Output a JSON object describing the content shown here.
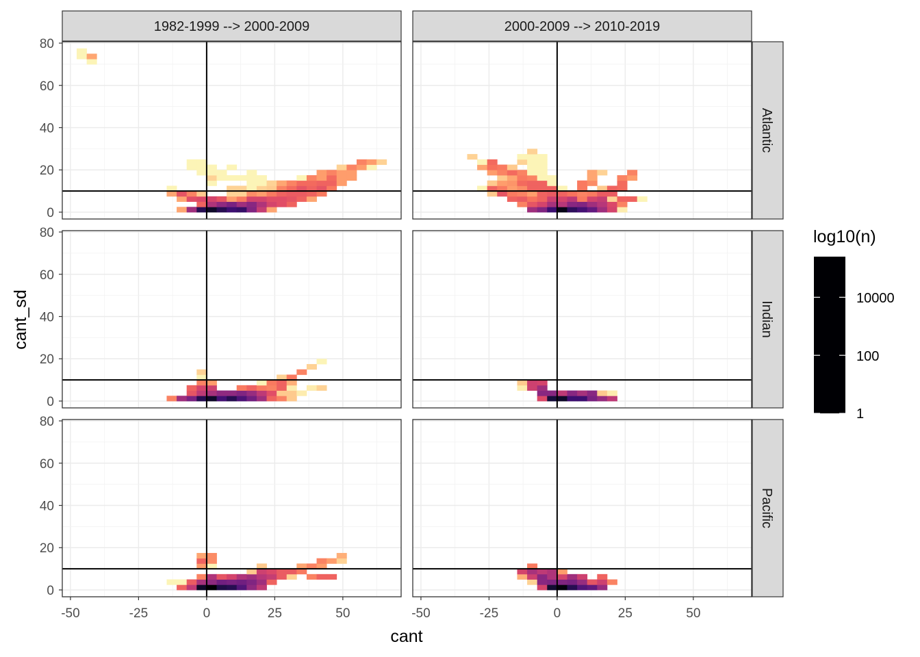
{
  "chart_data": {
    "type": "heatmap",
    "xlabel": "cant",
    "ylabel": "cant_sd",
    "xlim": [
      -53,
      71.4
    ],
    "ylim": [
      -3.24,
      80.65
    ],
    "x_ticks": [
      "-50",
      "-25",
      "0",
      "25",
      "50"
    ],
    "x_tick_values": [
      -50,
      -25,
      0,
      25,
      50
    ],
    "y_ticks": [
      "0",
      "20",
      "40",
      "60",
      "80"
    ],
    "y_tick_values": [
      0,
      20,
      40,
      60,
      80
    ],
    "grid": true,
    "reference_lines": {
      "cant": 0,
      "cant_sd": 10
    },
    "binwidth": {
      "cant": 3.67,
      "cant_sd": 2.5
    },
    "facet_columns": [
      "1982-1999 --> 2000-2009",
      "2000-2009 --> 2010-2019"
    ],
    "facet_rows": [
      "Atlantic",
      "Indian",
      "Pacific"
    ],
    "legend": {
      "title": "log10(n)",
      "position": "right",
      "labels": [
        "10000",
        "100",
        "1"
      ],
      "label_log_values": [
        4,
        2,
        0
      ],
      "range_log10": [
        0,
        5.4
      ],
      "palette": "magma (reversed)",
      "colors": [
        "#000004",
        "#140e36",
        "#3b0f70",
        "#641a80",
        "#8c2981",
        "#b73779",
        "#de4968",
        "#f7705c",
        "#fe9f6d",
        "#fecf92",
        "#fcfdbf"
      ]
    },
    "panels": [
      {
        "column": 0,
        "row": 0,
        "tiles": [
          {
            "cant_sd": 0,
            "cant_from": -11.01,
            "log10_n": [
              1.0,
              3.0,
              4.6,
              5.0,
              4.6,
              4.3,
              4.4,
              3.4,
              2.5,
              1.0
            ]
          },
          {
            "cant_sd": 2.5,
            "cant_from": -3.67,
            "log10_n": [
              1.8,
              2.8,
              3.2,
              3.5,
              3.0,
              3.3,
              2.8,
              2.3,
              2.1,
              1.8
            ]
          },
          {
            "cant_sd": 5,
            "cant_from": -11.01,
            "log10_n": [
              1.0,
              2.1,
              2.2,
              2.3,
              2.0,
              1.1,
              1.5,
              2.3,
              2.3,
              2.1,
              2.1,
              2.0,
              1.8,
              1.0
            ]
          },
          {
            "cant_sd": 7.5,
            "cant_from": -14.68,
            "log10_n": [
              1.0,
              2.0,
              1.4,
              0.6,
              null,
              null,
              0.5,
              0.5,
              1.3,
              1.1,
              1.5,
              1.8,
              1.9,
              1.9,
              1.8,
              1.5
            ]
          },
          {
            "cant_sd": 10,
            "cant_from": -14.68,
            "log10_n": [
              0.1,
              null,
              null,
              null,
              null,
              null,
              0.5,
              0.5,
              0.1,
              0.5,
              0.6,
              1.4,
              1.7,
              2.0,
              1.8,
              2.0,
              1.5
            ]
          },
          {
            "cant_sd": 12.5,
            "cant_from": 0,
            "log10_n": [
              0.1,
              null,
              null,
              null,
              0.1,
              0.1,
              0.5,
              1.0,
              1.4,
              1.7,
              1.7,
              1.8,
              1.8,
              1.1
            ]
          },
          {
            "cant_sd": 15,
            "cant_from": 0,
            "log10_n": [
              0.5,
              0.1,
              0.1,
              0.1,
              0.1,
              0.1,
              null,
              null,
              null,
              0.1,
              1.4,
              1.1,
              1.7,
              1.1,
              1.1
            ]
          },
          {
            "cant_sd": 17.5,
            "cant_from": -3.67,
            "log10_n": [
              0.1,
              0.1,
              0.1,
              null,
              null,
              0.1,
              null,
              null,
              null,
              null,
              null,
              null,
              1.1,
              1.4,
              1.1,
              1.1
            ]
          },
          {
            "cant_sd": 20,
            "cant_from": -7.34,
            "log10_n": [
              0.1,
              0.1,
              0.1,
              null,
              0.1,
              null,
              null,
              null,
              null,
              null,
              null,
              null,
              null,
              null,
              null,
              0.5,
              1.4,
              1.1,
              0.1
            ]
          },
          {
            "cant_sd": 22.5,
            "cant_from": -7.34,
            "log10_n": [
              0.1,
              0.1,
              null,
              null,
              null,
              null,
              null,
              null,
              null,
              null,
              null,
              null,
              null,
              null,
              null,
              null,
              null,
              1.4,
              1.1,
              0.5
            ]
          },
          {
            "cant_sd": 70,
            "cant_from": -44.04,
            "log10_n": [
              0.1
            ]
          },
          {
            "cant_sd": 72.5,
            "cant_from": -47.71,
            "log10_n": [
              0.1,
              1.0
            ]
          },
          {
            "cant_sd": 75,
            "cant_from": -47.71,
            "log10_n": [
              0.1
            ]
          }
        ]
      },
      {
        "column": 1,
        "row": 0,
        "tiles": [
          {
            "cant_sd": 0,
            "cant_from": -11.01,
            "log10_n": [
              3.0,
              3.4,
              4.3,
              5.2,
              4.5,
              4.2,
              3.8,
              3.0,
              2.3,
              0.2
            ]
          },
          {
            "cant_sd": 2.5,
            "cant_from": -14.68,
            "log10_n": [
              1.4,
              2.0,
              2.3,
              2.9,
              2.7,
              3.3,
              3.4,
              3.0,
              2.7,
              2.2,
              1.4
            ]
          },
          {
            "cant_sd": 5,
            "cant_from": -18.35,
            "log10_n": [
              1.8,
              1.9,
              1.6,
              1.8,
              2.4,
              2.3,
              2.6,
              1.5,
              2.3,
              2.5,
              0.5,
              1.8,
              1.8,
              0.1
            ]
          },
          {
            "cant_sd": 7.5,
            "cant_from": -25.69,
            "log10_n": [
              0.6,
              2.0,
              1.5,
              1.4,
              1.1,
              1.8,
              1.9,
              1.8,
              1.6,
              1.4,
              1.5,
              1.9,
              1.9
            ]
          },
          {
            "cant_sd": 10,
            "cant_from": -29.36,
            "log10_n": [
              0.1,
              1.8,
              1.5,
              1.1,
              1.3,
              1.8,
              1.8,
              1.8,
              0.1,
              null,
              1.5,
              null,
              0.6,
              1.8,
              1.7
            ]
          },
          {
            "cant_sd": 12.5,
            "cant_from": -25.69,
            "log10_n": [
              0.6,
              1.1,
              1.2,
              1.7,
              1.8,
              1.8,
              0.1,
              null,
              null,
              1.5,
              1.3,
              null,
              null,
              1.7
            ]
          },
          {
            "cant_sd": 15,
            "cant_from": -22.02,
            "log10_n": [
              0.6,
              1.0,
              1.5,
              1.4,
              0.1,
              0.1,
              null,
              null,
              null,
              1.0,
              null,
              null,
              1.4,
              1.1
            ]
          },
          {
            "cant_sd": 17.5,
            "cant_from": -25.69,
            "log10_n": [
              1.1,
              1.4,
              1.7,
              1.4,
              0.1,
              0.1,
              null,
              null,
              null,
              null,
              1.0,
              0.5,
              null,
              null,
              1.4
            ]
          },
          {
            "cant_sd": 20,
            "cant_from": -29.36,
            "log10_n": [
              1.0,
              1.6,
              1.5,
              0.6,
              null,
              0.1,
              0.1
            ]
          },
          {
            "cant_sd": 22.5,
            "cant_from": -29.36,
            "log10_n": [
              0.1,
              1.7,
              null,
              null,
              0.5,
              0.1,
              0.1
            ]
          },
          {
            "cant_sd": 25,
            "cant_from": -33.03,
            "log10_n": [
              0.5,
              null,
              null,
              null,
              null,
              0.1,
              0.1,
              0.1
            ]
          },
          {
            "cant_sd": 27.5,
            "cant_from": -11.01,
            "log10_n": [
              0.5
            ]
          }
        ]
      },
      {
        "column": 0,
        "row": 1,
        "tiles": [
          {
            "cant_sd": 0,
            "cant_from": -14.68,
            "log10_n": [
              1.4,
              3.0,
              3.5,
              4.6,
              5.0,
              4.2,
              4.6,
              4.1,
              3.6,
              3.0,
              1.8,
              1.4,
              0.6
            ]
          },
          {
            "cant_sd": 2.5,
            "cant_from": -7.34,
            "log10_n": [
              2.0,
              2.6,
              2.9,
              3.2,
              3.2,
              3.4,
              3.1,
              2.6,
              2.1,
              0.6,
              0.6,
              0.2
            ]
          },
          {
            "cant_sd": 5,
            "cant_from": -7.34,
            "log10_n": [
              1.8,
              2.3,
              2.4,
              null,
              null,
              1.5,
              1.8,
              1.5,
              1.4,
              1.8,
              0.2,
              null,
              0.2,
              0.5
            ]
          },
          {
            "cant_sd": 7.5,
            "cant_from": -3.67,
            "log10_n": [
              1.4,
              1.1,
              null,
              null,
              null,
              null,
              0.1,
              1.5,
              1.8,
              0.9
            ]
          },
          {
            "cant_sd": 10,
            "cant_from": -3.67,
            "log10_n": [
              0.1,
              null,
              null,
              null,
              null,
              null,
              null,
              null,
              0.5,
              1.5
            ]
          },
          {
            "cant_sd": 12.5,
            "cant_from": -3.67,
            "log10_n": [
              0.5,
              null,
              null,
              null,
              null,
              null,
              null,
              null,
              null,
              null,
              1.4
            ]
          },
          {
            "cant_sd": 15,
            "cant_from": 36.7,
            "log10_n": [
              0.5
            ]
          },
          {
            "cant_sd": 17.5,
            "cant_from": 40.37,
            "log10_n": [
              0.1
            ]
          }
        ]
      },
      {
        "column": 1,
        "row": 1,
        "tiles": [
          {
            "cant_sd": 0,
            "cant_from": -7.34,
            "log10_n": [
              2.2,
              4.8,
              5.0,
              4.3,
              4.3,
              3.5,
              3.1,
              2.6
            ]
          },
          {
            "cant_sd": 2.5,
            "cant_from": -7.34,
            "log10_n": [
              3.3,
              3.3,
              2.6,
              3.3,
              2.9,
              3.3,
              0.6,
              0.2
            ]
          },
          {
            "cant_sd": 5,
            "cant_from": -14.68,
            "log10_n": [
              0.2,
              2.4,
              3.0
            ]
          },
          {
            "cant_sd": 7.5,
            "cant_from": -14.68,
            "log10_n": [
              0.6,
              2.4,
              2.3
            ]
          }
        ]
      },
      {
        "column": 0,
        "row": 2,
        "tiles": [
          {
            "cant_sd": 0,
            "cant_from": -11.01,
            "log10_n": [
              1.8,
              2.6,
              5.0,
              5.4,
              4.7,
              4.6,
              4.0,
              3.2,
              2.6
            ]
          },
          {
            "cant_sd": 2.5,
            "cant_from": -14.68,
            "log10_n": [
              0.1,
              0.1,
              1.9,
              2.9,
              3.2,
              3.6,
              3.5,
              3.6,
              3.4,
              3.0,
              1.8
            ]
          },
          {
            "cant_sd": 5,
            "cant_from": -3.67,
            "log10_n": [
              1.4,
              2.8,
              2.0,
              2.3,
              2.8,
              3.0,
              2.7,
              2.5,
              1.9,
              0.5,
              null,
              1.4,
              1.8,
              1.8
            ]
          },
          {
            "cant_sd": 7.5,
            "cant_from": 14.68,
            "log10_n": [
              0.6,
              2.4,
              2.2,
              1.9,
              1.9,
              1.5
            ]
          },
          {
            "cant_sd": 10,
            "cant_from": -3.67,
            "log10_n": [
              1.1,
              0.1,
              null,
              null,
              null,
              null,
              0.6,
              null,
              null,
              null,
              1.0,
              1.4,
              1.1
            ]
          },
          {
            "cant_sd": 12.5,
            "cant_from": -3.67,
            "log10_n": [
              1.8,
              1.3,
              null,
              null,
              null,
              null,
              null,
              null,
              null,
              null,
              null,
              null,
              1.4,
              1.1,
              0.5
            ]
          },
          {
            "cant_sd": 15,
            "cant_from": -3.67,
            "log10_n": [
              1.0,
              1.3,
              null,
              null,
              null,
              null,
              null,
              null,
              null,
              null,
              null,
              null,
              null,
              null,
              0.9
            ]
          }
        ]
      },
      {
        "column": 1,
        "row": 2,
        "tiles": [
          {
            "cant_sd": 0,
            "cant_from": -7.34,
            "log10_n": [
              2.3,
              4.9,
              5.3,
              4.6,
              4.0,
              3.8,
              3.1
            ]
          },
          {
            "cant_sd": 2.5,
            "cant_from": -11.01,
            "log10_n": [
              0.5,
              3.3,
              3.4,
              3.4,
              3.5,
              3.1,
              2.0,
              2.4,
              1.4
            ]
          },
          {
            "cant_sd": 5,
            "cant_from": -14.68,
            "log10_n": [
              0.9,
              2.4,
              3.3,
              2.8,
              2.3,
              3.0,
              2.4,
              null,
              1.8
            ]
          },
          {
            "cant_sd": 7.5,
            "cant_from": -14.68,
            "log10_n": [
              2.3,
              2.9,
              2.6,
              2.8,
              1.1
            ]
          },
          {
            "cant_sd": 10,
            "cant_from": -11.01,
            "log10_n": [
              1.5
            ]
          }
        ]
      }
    ]
  }
}
